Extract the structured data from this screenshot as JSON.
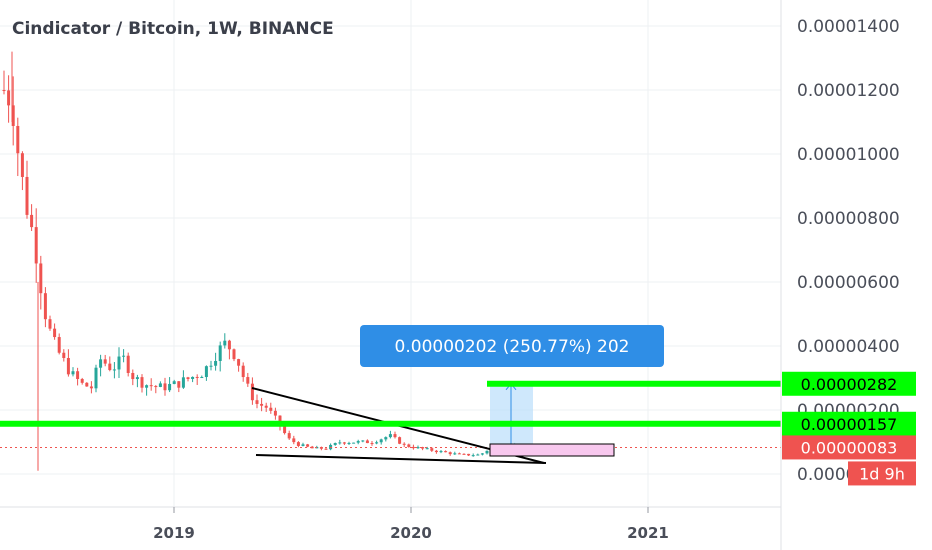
{
  "chart_data": {
    "type": "candlestick",
    "title": "Cindicator / Bitcoin, 1W, BINANCE",
    "y_ticks": [
      "0.00001400",
      "0.00001200",
      "0.00001000",
      "0.00000800",
      "0.00000600",
      "0.00000400",
      "0.00000200",
      "0.00000000"
    ],
    "x_ticks": [
      "2019",
      "2020",
      "2021"
    ],
    "ylim": [
      -1.1e-06,
      1.45e-05
    ],
    "price_tags": [
      {
        "value": 2.82e-06,
        "label": "0.00000282",
        "bg": "#00ff00",
        "fg": "#000000"
      },
      {
        "value": 1.57e-06,
        "label": "0.00000157",
        "bg": "#00ff00",
        "fg": "#000000"
      },
      {
        "value": 8.3e-07,
        "label": "0.00000083",
        "bg": "#ef5350",
        "fg": "#ffffff"
      }
    ],
    "countdown": "1d 9h",
    "measure_label": "0.00000202 (250.77%) 202",
    "colors": {
      "up": "#26a69a",
      "down": "#ef5350",
      "grid": "#eef0f3",
      "axis": "#dfe1e5",
      "level": "#00ff00",
      "measure": "#2f8ee6",
      "measure_fill": "#bbdefb",
      "pink_box": "#f8c8ee",
      "current_line": "#ef5350"
    },
    "candles_weekly_close_sample": [
      1.2e-05,
      1.1e-05,
      9e-06,
      8e-06,
      6e-06,
      4.5e-06,
      3.5e-06,
      3.2e-06,
      3e-06,
      2.8e-06,
      3.5e-06,
      3e-06,
      3.4e-06,
      3.2e-06,
      2.8e-06,
      3e-06,
      3.3e-06,
      3.6e-06,
      4e-06,
      3.8e-06,
      3e-06,
      2.4e-06,
      1.8e-06,
      1.2e-06,
      1e-06,
      9e-07,
      1.2e-06,
      1.4e-06,
      1.3e-06,
      1.2e-06,
      1e-06,
      9e-07,
      8e-07,
      7e-07,
      8e-07,
      9e-07
    ]
  }
}
